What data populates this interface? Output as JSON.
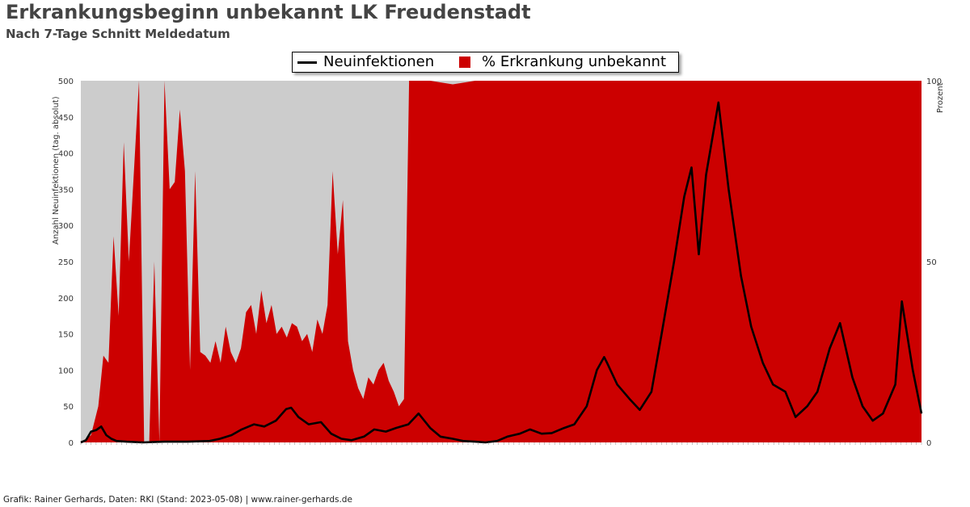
{
  "title": "Erkrankungsbeginn unbekannt LK Freudenstadt",
  "subtitle": "Nach 7-Tage Schnitt Meldedatum",
  "footer": "Grafik: Rainer Gerhards, Daten: RKI (Stand: 2023-05-08) | www.rainer-gerhards.de",
  "colors": {
    "area": "#cc0000",
    "plot_bg": "#cccccc",
    "line": "#000000"
  },
  "chart_data": {
    "type": "area",
    "title": "Erkrankungsbeginn unbekannt LK Freudenstadt",
    "subtitle": "Nach 7-Tage Schnitt Meldedatum",
    "y1label": "Anzahl Neuinfektionen (tag. absolut)",
    "y2label": "Prozent",
    "y1lim": [
      0,
      500
    ],
    "y2lim": [
      0,
      100
    ],
    "y1ticks": [
      "0",
      "50",
      "100",
      "150",
      "200",
      "250",
      "300",
      "350",
      "400",
      "450",
      "500"
    ],
    "y2ticks": [
      "0",
      "50",
      "100"
    ],
    "x_range": [
      "2020-03-08",
      "2023-05-07"
    ],
    "grid": false,
    "legend_position": "top-center",
    "series": [
      {
        "name": "Neuinfektionen",
        "kind": "line",
        "axis": "left",
        "points": [
          [
            "2020-03-08",
            0
          ],
          [
            "2020-03-15",
            3
          ],
          [
            "2020-03-22",
            15
          ],
          [
            "2020-03-29",
            17
          ],
          [
            "2020-04-05",
            22
          ],
          [
            "2020-04-12",
            10
          ],
          [
            "2020-04-19",
            5
          ],
          [
            "2020-04-26",
            2
          ],
          [
            "2020-05-10",
            1
          ],
          [
            "2020-06-01",
            0
          ],
          [
            "2020-07-01",
            1
          ],
          [
            "2020-08-01",
            1
          ],
          [
            "2020-09-01",
            2
          ],
          [
            "2020-09-15",
            5
          ],
          [
            "2020-10-01",
            10
          ],
          [
            "2020-10-15",
            18
          ],
          [
            "2020-11-01",
            25
          ],
          [
            "2020-11-15",
            22
          ],
          [
            "2020-12-01",
            30
          ],
          [
            "2020-12-15",
            46
          ],
          [
            "2020-12-22",
            48
          ],
          [
            "2021-01-01",
            35
          ],
          [
            "2021-01-15",
            25
          ],
          [
            "2021-02-01",
            28
          ],
          [
            "2021-02-15",
            12
          ],
          [
            "2021-03-01",
            5
          ],
          [
            "2021-03-15",
            3
          ],
          [
            "2021-04-01",
            8
          ],
          [
            "2021-04-15",
            18
          ],
          [
            "2021-05-01",
            15
          ],
          [
            "2021-05-15",
            20
          ],
          [
            "2021-06-01",
            25
          ],
          [
            "2021-06-15",
            40
          ],
          [
            "2021-07-01",
            20
          ],
          [
            "2021-07-15",
            8
          ],
          [
            "2021-08-01",
            5
          ],
          [
            "2021-08-15",
            2
          ],
          [
            "2021-09-01",
            1
          ],
          [
            "2021-09-15",
            0
          ],
          [
            "2021-10-01",
            2
          ],
          [
            "2021-10-15",
            8
          ],
          [
            "2021-11-01",
            12
          ],
          [
            "2021-11-15",
            18
          ],
          [
            "2021-12-01",
            12
          ],
          [
            "2021-12-15",
            13
          ],
          [
            "2022-01-01",
            20
          ],
          [
            "2022-01-15",
            25
          ],
          [
            "2022-02-01",
            50
          ],
          [
            "2022-02-15",
            100
          ],
          [
            "2022-02-25",
            118
          ],
          [
            "2022-03-01",
            110
          ],
          [
            "2022-03-15",
            80
          ],
          [
            "2022-04-01",
            60
          ],
          [
            "2022-04-15",
            45
          ],
          [
            "2022-05-01",
            70
          ],
          [
            "2022-05-15",
            150
          ],
          [
            "2022-06-01",
            250
          ],
          [
            "2022-06-15",
            340
          ],
          [
            "2022-06-25",
            380
          ],
          [
            "2022-07-05",
            260
          ],
          [
            "2022-07-15",
            370
          ],
          [
            "2022-08-01",
            470
          ],
          [
            "2022-08-15",
            350
          ],
          [
            "2022-09-01",
            230
          ],
          [
            "2022-09-15",
            160
          ],
          [
            "2022-10-01",
            110
          ],
          [
            "2022-10-15",
            80
          ],
          [
            "2022-11-01",
            70
          ],
          [
            "2022-11-15",
            35
          ],
          [
            "2022-12-01",
            50
          ],
          [
            "2022-12-15",
            70
          ],
          [
            "2023-01-01",
            130
          ],
          [
            "2023-01-15",
            165
          ],
          [
            "2023-02-01",
            90
          ],
          [
            "2023-02-15",
            50
          ],
          [
            "2023-03-01",
            30
          ],
          [
            "2023-03-15",
            40
          ],
          [
            "2023-04-01",
            80
          ],
          [
            "2023-04-10",
            195
          ],
          [
            "2023-04-25",
            100
          ],
          [
            "2023-05-07",
            40
          ]
        ]
      },
      {
        "name": "% Erkrankung unbekannt",
        "kind": "area",
        "axis": "right",
        "points": [
          [
            "2020-03-08",
            0
          ],
          [
            "2020-03-22",
            2
          ],
          [
            "2020-04-01",
            10
          ],
          [
            "2020-04-08",
            24
          ],
          [
            "2020-04-15",
            22
          ],
          [
            "2020-04-22",
            57
          ],
          [
            "2020-04-29",
            35
          ],
          [
            "2020-05-06",
            83
          ],
          [
            "2020-05-13",
            50
          ],
          [
            "2020-05-20",
            75
          ],
          [
            "2020-05-27",
            100
          ],
          [
            "2020-06-03",
            0
          ],
          [
            "2020-06-10",
            0
          ],
          [
            "2020-06-17",
            50
          ],
          [
            "2020-06-24",
            0
          ],
          [
            "2020-07-01",
            100
          ],
          [
            "2020-07-08",
            70
          ],
          [
            "2020-07-15",
            72
          ],
          [
            "2020-07-22",
            92
          ],
          [
            "2020-07-29",
            75
          ],
          [
            "2020-08-05",
            20
          ],
          [
            "2020-08-12",
            75
          ],
          [
            "2020-08-19",
            25
          ],
          [
            "2020-08-26",
            24
          ],
          [
            "2020-09-02",
            22
          ],
          [
            "2020-09-09",
            28
          ],
          [
            "2020-09-16",
            22
          ],
          [
            "2020-09-23",
            32
          ],
          [
            "2020-09-30",
            25
          ],
          [
            "2020-10-07",
            22
          ],
          [
            "2020-10-14",
            26
          ],
          [
            "2020-10-21",
            36
          ],
          [
            "2020-10-28",
            38
          ],
          [
            "2020-11-04",
            30
          ],
          [
            "2020-11-11",
            42
          ],
          [
            "2020-11-18",
            33
          ],
          [
            "2020-11-25",
            38
          ],
          [
            "2020-12-02",
            30
          ],
          [
            "2020-12-09",
            32
          ],
          [
            "2020-12-16",
            29
          ],
          [
            "2020-12-23",
            33
          ],
          [
            "2020-12-30",
            32
          ],
          [
            "2021-01-06",
            28
          ],
          [
            "2021-01-13",
            30
          ],
          [
            "2021-01-20",
            25
          ],
          [
            "2021-01-27",
            34
          ],
          [
            "2021-02-03",
            30
          ],
          [
            "2021-02-10",
            38
          ],
          [
            "2021-02-17",
            75
          ],
          [
            "2021-02-24",
            52
          ],
          [
            "2021-03-03",
            67
          ],
          [
            "2021-03-10",
            28
          ],
          [
            "2021-03-17",
            20
          ],
          [
            "2021-03-24",
            15
          ],
          [
            "2021-03-31",
            12
          ],
          [
            "2021-04-07",
            18
          ],
          [
            "2021-04-14",
            16
          ],
          [
            "2021-04-21",
            20
          ],
          [
            "2021-04-28",
            22
          ],
          [
            "2021-05-05",
            17
          ],
          [
            "2021-05-12",
            14
          ],
          [
            "2021-05-19",
            10
          ],
          [
            "2021-05-26",
            12
          ],
          [
            "2021-06-02",
            100
          ],
          [
            "2021-06-15",
            100
          ],
          [
            "2021-07-01",
            100
          ],
          [
            "2021-08-01",
            99
          ],
          [
            "2021-09-01",
            100
          ],
          [
            "2021-10-01",
            100
          ],
          [
            "2022-01-01",
            100
          ],
          [
            "2022-06-01",
            100
          ],
          [
            "2022-12-01",
            100
          ],
          [
            "2023-05-07",
            100
          ]
        ]
      }
    ]
  }
}
